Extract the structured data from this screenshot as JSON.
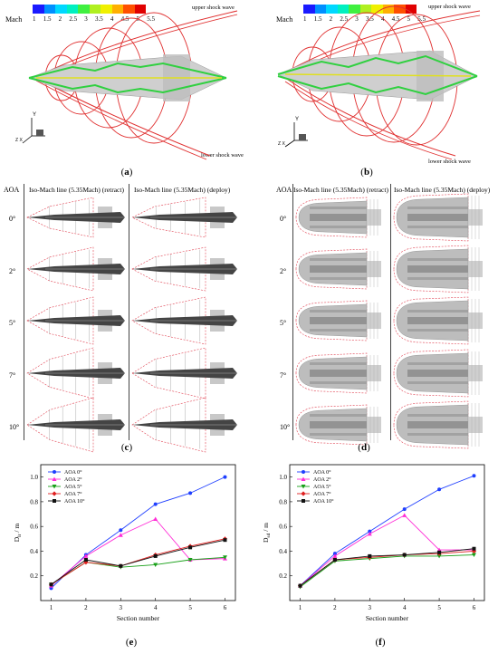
{
  "colorbar": {
    "title": "Mach",
    "ticks": [
      "1",
      "1.5",
      "2",
      "2.5",
      "3",
      "3.5",
      "4",
      "4.5",
      "5",
      "5.5"
    ],
    "colors": [
      "#1a1aff",
      "#0090ff",
      "#00d8ff",
      "#00f0c0",
      "#40f040",
      "#b0f020",
      "#f0f000",
      "#ffb000",
      "#ff5000",
      "#e00000"
    ]
  },
  "panels": {
    "a": {
      "label": "a",
      "upper": "upper shock wave",
      "lower": "lower shock wave",
      "axes": [
        "Y",
        "Z",
        "X"
      ]
    },
    "b": {
      "label": "b",
      "upper": "upper shock wave",
      "lower": "lower shock wave",
      "axes": [
        "Y",
        "Z",
        "X"
      ]
    },
    "c": {
      "label": "c",
      "aoa_head": "AOA",
      "col1": "Iso-Mach line (5.35Mach) (retract)",
      "col2": "Iso-Mach line (5.35Mach) (deploy)"
    },
    "d": {
      "label": "d",
      "aoa_head": "AOA",
      "col1": "Iso-Mach line (5.35Mach) (retract)",
      "col2": "Iso-Mach line (5.35Mach) (deploy)"
    },
    "e": {
      "label": "e"
    },
    "f": {
      "label": "f"
    }
  },
  "aoa_values": [
    "0°",
    "2°",
    "5°",
    "7°",
    "10°"
  ],
  "chart_data": [
    {
      "type": "line",
      "panel": "e",
      "xlabel": "Section number",
      "ylabel": "D",
      "ylabel_sub": "lr",
      "ylabel_unit": " / m",
      "x": [
        1,
        2,
        3,
        4,
        5,
        6
      ],
      "xlim": [
        0.7,
        6.3
      ],
      "ylim": [
        0,
        1.1
      ],
      "yticks": [
        "0.2",
        "0.4",
        "0.6",
        "0.8",
        "1.0"
      ],
      "series": [
        {
          "name": "AOA 0°",
          "color": "#1f3fff",
          "marker": "circle",
          "values": [
            0.1,
            0.37,
            0.57,
            0.78,
            0.87,
            1.0
          ]
        },
        {
          "name": "AOA 2°",
          "color": "#ff2bd6",
          "marker": "triangle",
          "values": [
            0.12,
            0.36,
            0.53,
            0.66,
            0.33,
            0.34
          ]
        },
        {
          "name": "AOA 5°",
          "color": "#18a018",
          "marker": "triangle-down",
          "values": [
            0.13,
            0.31,
            0.27,
            0.29,
            0.33,
            0.35
          ]
        },
        {
          "name": "AOA 7°",
          "color": "#e02020",
          "marker": "diamond",
          "values": [
            0.13,
            0.31,
            0.28,
            0.37,
            0.44,
            0.5
          ]
        },
        {
          "name": "AOA 10°",
          "color": "#111111",
          "marker": "square",
          "values": [
            0.13,
            0.33,
            0.28,
            0.36,
            0.43,
            0.49
          ]
        }
      ]
    },
    {
      "type": "line",
      "panel": "f",
      "xlabel": "Section number",
      "ylabel": "D",
      "ylabel_sub": "sd",
      "ylabel_unit": " / m",
      "x": [
        1,
        2,
        3,
        4,
        5,
        6
      ],
      "xlim": [
        0.7,
        6.3
      ],
      "ylim": [
        0,
        1.1
      ],
      "yticks": [
        "0.2",
        "0.4",
        "0.6",
        "0.8",
        "1.0"
      ],
      "series": [
        {
          "name": "AOA 0°",
          "color": "#1f3fff",
          "marker": "circle",
          "values": [
            0.12,
            0.38,
            0.56,
            0.74,
            0.9,
            1.01
          ]
        },
        {
          "name": "AOA 2°",
          "color": "#ff2bd6",
          "marker": "triangle",
          "values": [
            0.12,
            0.36,
            0.54,
            0.69,
            0.41,
            0.41
          ]
        },
        {
          "name": "AOA 5°",
          "color": "#18a018",
          "marker": "triangle-down",
          "values": [
            0.11,
            0.32,
            0.34,
            0.36,
            0.36,
            0.37
          ]
        },
        {
          "name": "AOA 7°",
          "color": "#e02020",
          "marker": "diamond",
          "values": [
            0.12,
            0.33,
            0.35,
            0.37,
            0.38,
            0.4
          ]
        },
        {
          "name": "AOA 10°",
          "color": "#111111",
          "marker": "square",
          "values": [
            0.12,
            0.33,
            0.36,
            0.37,
            0.39,
            0.42
          ]
        }
      ]
    }
  ]
}
